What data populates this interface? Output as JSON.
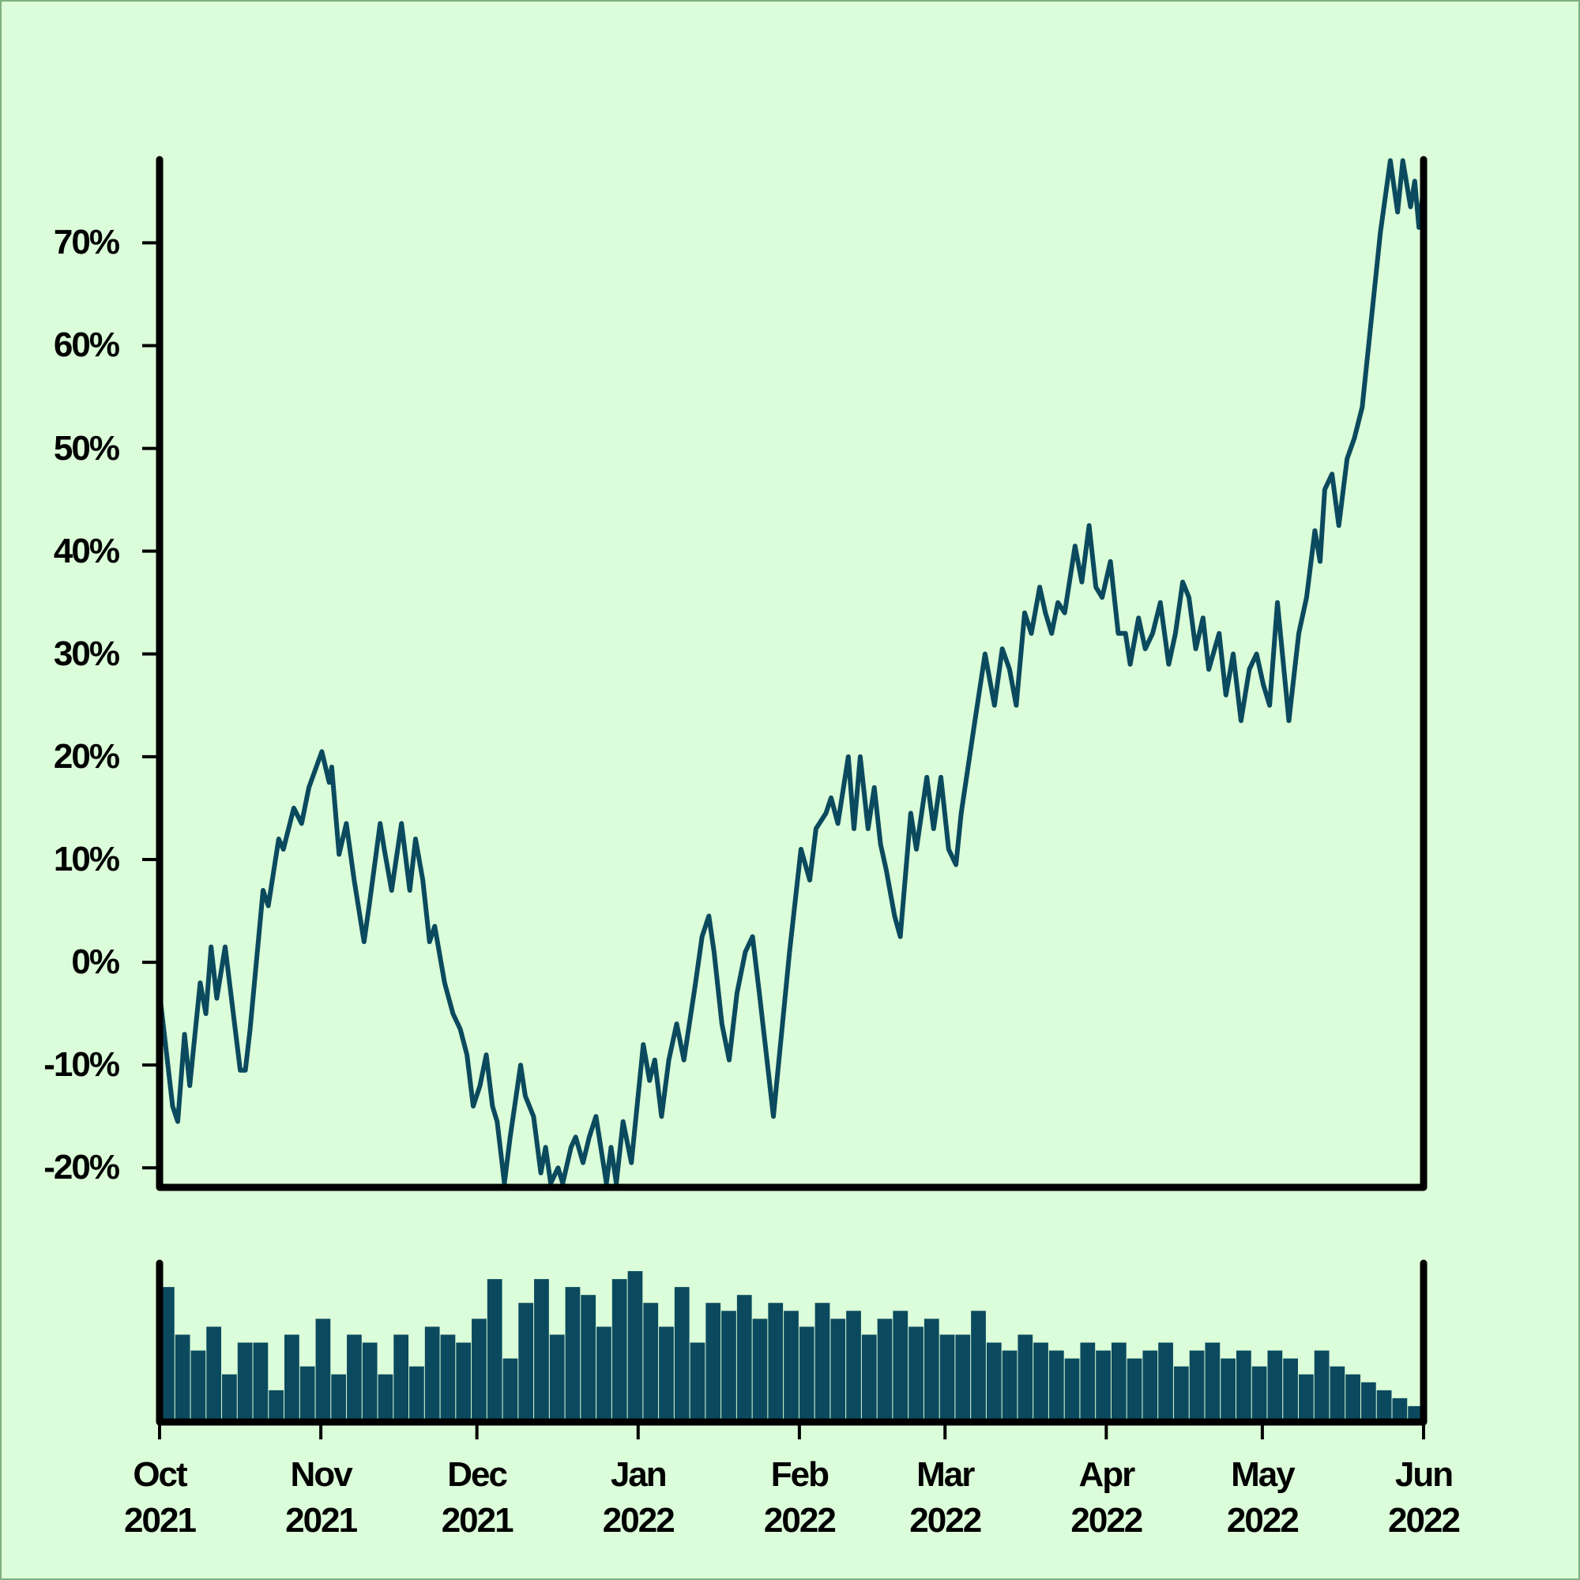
{
  "chart_data": [
    {
      "type": "line",
      "color": "#0b4a5e",
      "x": [
        0,
        2.5,
        3.5,
        4.8,
        5.8,
        7.8,
        8.9,
        9.9,
        11,
        12.6,
        15.5,
        16.5,
        17.4,
        19.9,
        20.9,
        22.9,
        23.8,
        25.8,
        27.3,
        28.7,
        31.2,
        32.6,
        33.1,
        34.5,
        35.9,
        37.4,
        39.3,
        40.3,
        42.4,
        43.2,
        44.6,
        46.5,
        48.1,
        49.2,
        50.6,
        51.9,
        52.9,
        54.8,
        56.4,
        57.8,
        59.1,
        60.3,
        61.6,
        62.8,
        64,
        64.9,
        66.3,
        67.4,
        69.4,
        70.3,
        71.9,
        73.3,
        74.2,
        75.2,
        76.6,
        77.5,
        79.1,
        80,
        81.4,
        82.6,
        83.9,
        85.9,
        86.8,
        87.8,
        89.1,
        90.7,
        93,
        94.2,
        95.2,
        96.5,
        97.9,
        99.4,
        100.8,
        102.9,
        104.3,
        105.6,
        106.6,
        108.1,
        109.5,
        111,
        112.6,
        114,
        115.3,
        118,
        121.1,
        123.3,
        125,
        126.2,
        128.1,
        129.1,
        130.4,
        132.4,
        133.5,
        134.7,
        136.2,
        137.4,
        138.6,
        139.7,
        141.3,
        142.4,
        144.4,
        145.5,
        147.5,
        148.8,
        150.2,
        151.7,
        153.1,
        154.1,
        156.6,
        158.7,
        160.5,
        162,
        163.4,
        164.7,
        166.3,
        167.6,
        169.2,
        170.3,
        171.5,
        172.7,
        174,
        176,
        177.3,
        178.7,
        180,
        181.2,
        182.8,
        184.3,
        185.7,
        186.6,
        188.2,
        189.5,
        190.9,
        192.4,
        194,
        195.3,
        196.7,
        197.9,
        199.2,
        200.6,
        201.7,
        203.7,
        205,
        206.4,
        207.9,
        209.5,
        210.9,
        212.2,
        213.4,
        214.9,
        217.1,
        219,
        220.5,
        222.1,
        223.1,
        224,
        225.4,
        226.7,
        228.3,
        229.7,
        231.2,
        234.7,
        236.6,
        238,
        239,
        240.5,
        241.3,
        242.1,
        242.8
      ],
      "values": [
        -3,
        -14,
        -15.5,
        -7,
        -12,
        -2,
        -5,
        1.5,
        -3.5,
        1.5,
        -10.5,
        -10.5,
        -6.5,
        7,
        5.5,
        12,
        11,
        15,
        13.5,
        17,
        20.5,
        17.5,
        19,
        10.5,
        13.5,
        8,
        2,
        5.5,
        13.5,
        11,
        7,
        13.5,
        7,
        12,
        8,
        2,
        3.5,
        -2,
        -5,
        -6.5,
        -9,
        -14,
        -12,
        -9,
        -14,
        -15.5,
        -21.5,
        -17,
        -10,
        -13,
        -15,
        -20.5,
        -18,
        -21.5,
        -20,
        -21.5,
        -18,
        -17,
        -19.5,
        -17,
        -15,
        -21.5,
        -18,
        -21.5,
        -15.5,
        -19.5,
        -8,
        -11.5,
        -9.5,
        -15,
        -9.5,
        -6,
        -9.5,
        -2.5,
        2.5,
        4.5,
        1,
        -6,
        -9.5,
        -3,
        1,
        2.5,
        -3,
        -15,
        1,
        11,
        8,
        13,
        14.5,
        16,
        13.5,
        20,
        13,
        20,
        13,
        17,
        11.5,
        9,
        4.5,
        2.5,
        14.5,
        11,
        18,
        13,
        18,
        11,
        9.5,
        14.5,
        23,
        30,
        25,
        30.5,
        28.5,
        25,
        34,
        32,
        36.5,
        34,
        32,
        35,
        34,
        40.5,
        37,
        42.5,
        36.5,
        35.5,
        39,
        32,
        32,
        29,
        33.5,
        30.5,
        32,
        35,
        29,
        32,
        37,
        35.5,
        30.5,
        33.5,
        28.5,
        32,
        26,
        30,
        23.5,
        28.5,
        30,
        27,
        25,
        35,
        23.5,
        32,
        35.5,
        42,
        39,
        46,
        47.5,
        42.5,
        49,
        51,
        54,
        71,
        78,
        73,
        78,
        73.5,
        76,
        71.5,
        74.5
      ],
      "xlim": [
        0,
        243
      ],
      "ylim": [
        -21.9,
        78.1
      ],
      "yticks": [
        {
          "value": -20,
          "label": "-20%"
        },
        {
          "value": -10,
          "label": "-10%"
        },
        {
          "value": 0,
          "label": "0%"
        },
        {
          "value": 10,
          "label": "10%"
        },
        {
          "value": 20,
          "label": "20%"
        },
        {
          "value": 30,
          "label": "30%"
        },
        {
          "value": 40,
          "label": "40%"
        },
        {
          "value": 50,
          "label": "50%"
        },
        {
          "value": 60,
          "label": "60%"
        },
        {
          "value": 70,
          "label": "70%"
        }
      ]
    },
    {
      "type": "bar",
      "color": "#0b4a5e",
      "x": [
        0,
        3,
        6,
        9,
        12,
        15,
        18,
        21,
        24,
        27,
        30,
        33,
        36,
        39,
        42,
        45,
        48,
        51,
        54,
        57,
        60,
        63,
        66,
        69,
        72,
        75,
        78,
        81,
        84,
        87,
        90,
        93,
        96,
        99,
        102,
        105,
        108,
        111,
        114,
        117,
        120,
        123,
        126,
        129,
        132,
        135,
        138,
        141,
        144,
        147,
        150,
        153,
        156,
        159,
        162,
        165,
        168,
        171,
        174,
        177,
        180,
        183,
        186,
        189,
        192,
        195,
        198,
        201,
        204,
        207,
        210,
        213,
        216,
        219,
        222,
        225,
        228,
        231,
        234,
        237,
        240
      ],
      "values": [
        85,
        55,
        45,
        60,
        30,
        50,
        50,
        20,
        55,
        35,
        65,
        30,
        55,
        50,
        30,
        55,
        35,
        60,
        55,
        50,
        65,
        90,
        40,
        75,
        90,
        55,
        85,
        80,
        60,
        90,
        95,
        75,
        60,
        85,
        50,
        75,
        70,
        80,
        65,
        75,
        70,
        60,
        75,
        65,
        70,
        55,
        65,
        70,
        60,
        65,
        55,
        55,
        70,
        50,
        45,
        55,
        50,
        45,
        40,
        50,
        45,
        50,
        40,
        45,
        50,
        35,
        45,
        50,
        40,
        45,
        35,
        45,
        40,
        30,
        45,
        35,
        30,
        25,
        20,
        15,
        10
      ],
      "xlim": [
        0,
        243
      ],
      "ylim": [
        0,
        100
      ],
      "xticks": [
        {
          "value": 0,
          "label": "Oct\n2021"
        },
        {
          "value": 31,
          "label": "Nov\n2021"
        },
        {
          "value": 61,
          "label": "Dec\n2021"
        },
        {
          "value": 92,
          "label": "Jan\n2022"
        },
        {
          "value": 123,
          "label": "Feb\n2022"
        },
        {
          "value": 151,
          "label": "Mar\n2022"
        },
        {
          "value": 182,
          "label": "Apr\n2022"
        },
        {
          "value": 212,
          "label": "May\n2022"
        },
        {
          "value": 243,
          "label": "Jun\n2022"
        }
      ]
    }
  ]
}
